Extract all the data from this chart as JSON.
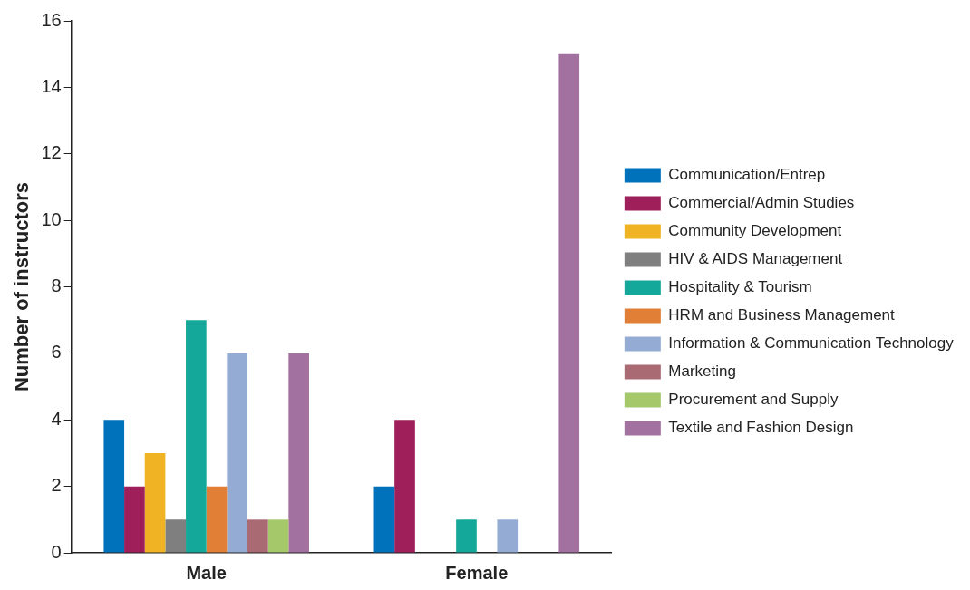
{
  "chart_data": {
    "type": "bar",
    "ylabel": "Number of instructors",
    "categories": [
      "Male",
      "Female"
    ],
    "series": [
      {
        "name": "Communication/Entrep",
        "color": "#0072bc",
        "values": [
          4,
          2
        ]
      },
      {
        "name": "Commercial/Admin Studies",
        "color": "#9e1f5a",
        "values": [
          2,
          4
        ]
      },
      {
        "name": "Community Development",
        "color": "#f0b323",
        "values": [
          3,
          0
        ]
      },
      {
        "name": "HIV & AIDS Management",
        "color": "#7f7f7f",
        "values": [
          1,
          0
        ]
      },
      {
        "name": "Hospitality & Tourism",
        "color": "#14a89a",
        "values": [
          7,
          1
        ]
      },
      {
        "name": "HRM and Business Management",
        "color": "#e07f35",
        "values": [
          2,
          0
        ]
      },
      {
        "name": "Information & Communication Technology",
        "color": "#94acd4",
        "values": [
          6,
          1
        ]
      },
      {
        "name": "Marketing",
        "color": "#a96a74",
        "values": [
          1,
          0
        ]
      },
      {
        "name": "Procurement and Supply",
        "color": "#a4c86a",
        "values": [
          1,
          0
        ]
      },
      {
        "name": "Textile and Fashion Design",
        "color": "#a3719f",
        "values": [
          6,
          15
        ]
      }
    ],
    "ylim": [
      0,
      16
    ],
    "yticks": [
      0,
      2,
      4,
      6,
      8,
      10,
      12,
      14,
      16
    ],
    "grid": false,
    "legend": "right"
  }
}
